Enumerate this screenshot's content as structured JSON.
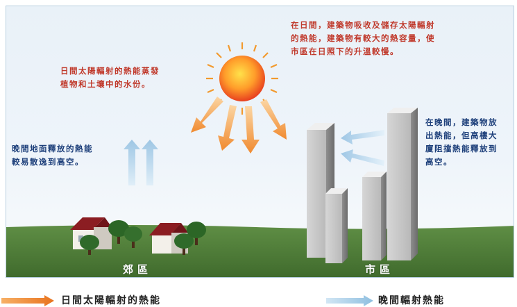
{
  "annotations": {
    "sun_evaporation": "日間太陽輻射的熱能蒸發\n植物和土壤中的水份。",
    "daytime_city": "在日間，建築物吸收及儲存太陽輻射\n的熱能，建築物有較大的熱容量，使\n市區在日照下的升溫較慢。",
    "suburb_night": "晚間地面釋放的熱能\n較易散逸到高空。",
    "city_night": "在晚間，建築物放\n出熱能，但高樓大\n廈阻擋熱能釋放到\n高空。"
  },
  "regions": {
    "suburb": "郊區",
    "city": "市區"
  },
  "legend": {
    "solar": "日間太陽輻射的熱能",
    "night": "晚間輻射熱能"
  },
  "colors": {
    "text_red": "#c0392b",
    "text_blue": "#1d3f7a",
    "solar_arrow": "#f39c4a",
    "night_arrow": "#a9cde6",
    "grass": "#4e7d3a"
  }
}
